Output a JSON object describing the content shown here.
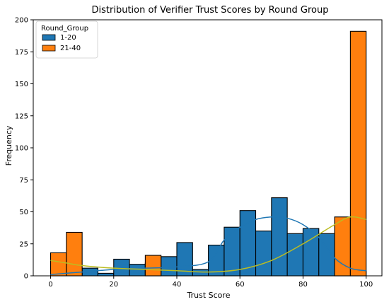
{
  "chart_data": {
    "type": "histogram",
    "title": "Distribution of Verifier Trust Scores by Round Group",
    "xlabel": "Trust Score",
    "ylabel": "Frequency",
    "xlim": [
      -5.5,
      105
    ],
    "ylim": [
      0,
      200
    ],
    "xticks": [
      0,
      20,
      40,
      60,
      80,
      100
    ],
    "yticks": [
      0,
      25,
      50,
      75,
      100,
      125,
      150,
      175,
      200
    ],
    "grid": false,
    "legend": {
      "title": "Round_Group",
      "position": "top-left"
    },
    "bin_edges": [
      0,
      5,
      10,
      15,
      20,
      25,
      30,
      35,
      40,
      45,
      50,
      55,
      60,
      65,
      70,
      75,
      80,
      85,
      90,
      95,
      100
    ],
    "series": [
      {
        "name": "1-20",
        "color": "#1f77b4",
        "values": [
          0,
          0,
          6,
          2,
          13,
          9,
          10,
          15,
          26,
          5,
          24,
          38,
          51,
          35,
          61,
          33,
          37,
          33,
          7,
          4
        ],
        "kde": [
          [
            0,
            1
          ],
          [
            10,
            3
          ],
          [
            20,
            5
          ],
          [
            30,
            6
          ],
          [
            40,
            7
          ],
          [
            50,
            11
          ],
          [
            55,
            28
          ],
          [
            60,
            38
          ],
          [
            65,
            44
          ],
          [
            70,
            46
          ],
          [
            75,
            45
          ],
          [
            80,
            40
          ],
          [
            85,
            30
          ],
          [
            90,
            14
          ],
          [
            95,
            6
          ],
          [
            100,
            4
          ]
        ]
      },
      {
        "name": "21-40",
        "color": "#ff7f0e",
        "values": [
          18,
          34,
          0,
          0,
          0,
          0,
          16,
          0,
          0,
          0,
          0,
          0,
          0,
          0,
          0,
          0,
          0,
          0,
          46,
          191
        ],
        "kde": [
          [
            0,
            12
          ],
          [
            5,
            10
          ],
          [
            10,
            8
          ],
          [
            20,
            6
          ],
          [
            30,
            5
          ],
          [
            40,
            4
          ],
          [
            50,
            3
          ],
          [
            60,
            5
          ],
          [
            70,
            12
          ],
          [
            80,
            25
          ],
          [
            90,
            40
          ],
          [
            95,
            46
          ],
          [
            100,
            44
          ]
        ]
      }
    ]
  }
}
